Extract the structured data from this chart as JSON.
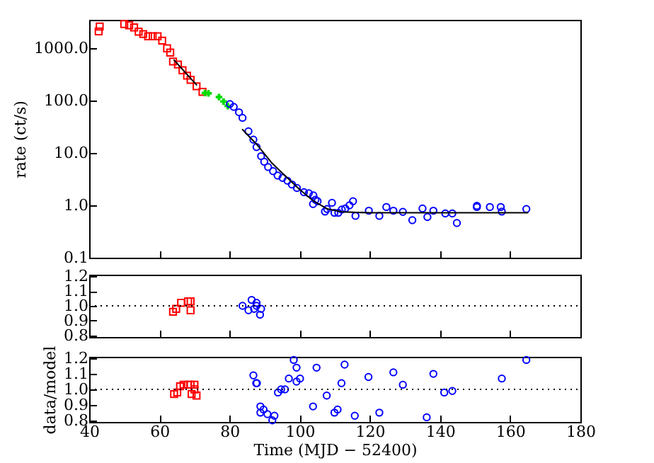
{
  "chart_data": [
    {
      "type": "scatter",
      "ylabel": "rate (ct/s)",
      "log": "y",
      "xlim": [
        40,
        180
      ],
      "xticks": [
        40,
        60,
        80,
        100,
        120,
        140,
        160,
        180
      ],
      "ylim": [
        0.1,
        3500
      ],
      "yticks": [
        {
          "value": 0.1,
          "label": "0.1"
        },
        {
          "value": 1,
          "label": "1.0"
        },
        {
          "value": 10,
          "label": "10.0"
        },
        {
          "value": 100,
          "label": "100.0"
        },
        {
          "value": 1000,
          "label": "1000.0"
        }
      ],
      "tick_labels": "y",
      "grid": false,
      "series": [
        {
          "marker": "square",
          "color": "#ff0000",
          "x": [
            42.7,
            43,
            50,
            51.4,
            52.8,
            54.1,
            55.4,
            56.8,
            58.1,
            59.5,
            60.8,
            62.2,
            63.1,
            63.9,
            65.3,
            66.6,
            67.9,
            68.9,
            70.6,
            72.3
          ],
          "values": [
            2100,
            2600,
            2900,
            2750,
            2500,
            2080,
            1870,
            1700,
            1700,
            1700,
            1400,
            1000,
            830,
            560,
            490,
            380,
            300,
            250,
            188,
            147
          ]
        },
        {
          "marker": "cross",
          "color": "#00dd00",
          "x": [
            73,
            74,
            77,
            78.3,
            79.5
          ],
          "values": [
            140,
            138,
            117,
            96,
            79
          ]
        },
        {
          "marker": "circle",
          "color": "#0000ff",
          "x": [
            80.1,
            81.2,
            82.7,
            83.7,
            85.4,
            86.8,
            87.7,
            89,
            89.9,
            91,
            92.4,
            93.7,
            95.1,
            96.5,
            97.8,
            99.2,
            101.2,
            102.6,
            103.9,
            104.5,
            105.1,
            103.8,
            107.2,
            107.8,
            109.2,
            109.9,
            111,
            112,
            113,
            114.2,
            115.2,
            115.9,
            119.7,
            122.7,
            124.7,
            126.7,
            129.4,
            132.1,
            135,
            136.4,
            138.1,
            141.5,
            143.5,
            144.8,
            150.5,
            150.5,
            154.2,
            157.3,
            157.6,
            164.6
          ],
          "values": [
            86,
            76,
            60,
            47,
            26,
            18,
            13,
            8.7,
            6.8,
            5.4,
            4.5,
            3.7,
            3.35,
            2.95,
            2.5,
            2.15,
            1.78,
            1.7,
            1.55,
            1.28,
            1.2,
            1.06,
            0.76,
            0.85,
            1.12,
            0.72,
            0.72,
            0.83,
            0.87,
            1.0,
            1.2,
            0.63,
            0.79,
            0.63,
            0.93,
            0.79,
            0.75,
            0.52,
            0.87,
            0.6,
            0.79,
            0.7,
            0.7,
            0.46,
            0.98,
            0.93,
            0.93,
            0.93,
            0.76,
            0.85
          ]
        },
        {
          "type": "line",
          "color": "#000000",
          "x": [
            64.2,
            70.6
          ],
          "values": [
            596,
            200
          ]
        },
        {
          "type": "line",
          "color": "#000000",
          "x": [
            83.7,
            88,
            92,
            96,
            100,
            104,
            108,
            112,
            120,
            165
          ],
          "values": [
            28,
            14,
            6.5,
            3.6,
            2.0,
            1.2,
            0.85,
            0.75,
            0.72,
            0.72
          ]
        }
      ]
    },
    {
      "type": "scatter",
      "xlim": [
        40,
        180
      ],
      "xticks": [
        40,
        60,
        80,
        100,
        120,
        140,
        160,
        180
      ],
      "ylim": [
        0.79,
        1.21
      ],
      "yticks": [
        {
          "value": 0.8,
          "label": "0.8"
        },
        {
          "value": 0.9,
          "label": "0.9"
        },
        {
          "value": 1,
          "label": "1.0"
        },
        {
          "value": 1.1,
          "label": "1.1"
        },
        {
          "value": 1.2,
          "label": "1.2"
        }
      ],
      "tick_labels": "y",
      "grid": false,
      "ref_lines": [
        {
          "axis": "y",
          "value": 1,
          "line_style": "dotted",
          "color": "#000000"
        }
      ],
      "series": [
        {
          "marker": "square",
          "color": "#ff0000",
          "x": [
            63.9,
            64.8,
            66.2,
            68.2,
            68.9,
            68.9
          ],
          "values": [
            0.96,
            0.98,
            1.02,
            1.03,
            1.03,
            0.97
          ]
        },
        {
          "marker": "circle",
          "color": "#0000ff",
          "x": [
            83.7,
            85.4,
            86.3,
            87,
            87.7,
            87.7,
            89,
            88.7
          ],
          "values": [
            1.0,
            0.97,
            1.04,
            0.98,
            1.02,
            1.0,
            0.98,
            0.94
          ]
        }
      ]
    },
    {
      "type": "scatter",
      "xlabel": "Time (MJD − 52400)",
      "ylabel": "data/model",
      "xlim": [
        40,
        180
      ],
      "xticks": [
        40,
        60,
        80,
        100,
        120,
        140,
        160,
        180
      ],
      "ylim": [
        0.79,
        1.21
      ],
      "yticks": [
        {
          "value": 0.8,
          "label": "0.8"
        },
        {
          "value": 0.9,
          "label": "0.9"
        },
        {
          "value": 1,
          "label": "1.0"
        },
        {
          "value": 1.1,
          "label": "1.1"
        },
        {
          "value": 1.2,
          "label": "1.2"
        }
      ],
      "grid": false,
      "ref_lines": [
        {
          "axis": "y",
          "value": 1,
          "line_style": "dotted",
          "color": "#000000"
        }
      ],
      "series": [
        {
          "marker": "square",
          "color": "#ff0000",
          "x": [
            64.2,
            65.1,
            65.9,
            66.9,
            68.2,
            68.9,
            69.2,
            70,
            70,
            70.6
          ],
          "values": [
            0.97,
            0.98,
            1.02,
            1.03,
            1.03,
            1.03,
            0.97,
            1.03,
            1.0,
            0.96
          ]
        },
        {
          "marker": "circle",
          "color": "#0000ff",
          "x": [
            86.8,
            87.6,
            87.8,
            88.8,
            88.8,
            89.7,
            90.8,
            92.2,
            92.8,
            93.8,
            94.7,
            95.8,
            96.9,
            98.3,
            99.1,
            99.1,
            100.1,
            103.8,
            104.8,
            107.7,
            109.9,
            110.8,
            111.9,
            112.8,
            115.7,
            119.6,
            122.7,
            126.7,
            129.4,
            136.2,
            138.1,
            141.2,
            143.5,
            157.6,
            164.6
          ],
          "values": [
            1.09,
            1.04,
            1.04,
            0.89,
            0.85,
            0.87,
            0.84,
            0.8,
            0.83,
            0.98,
            1.0,
            1.0,
            1.07,
            1.19,
            1.14,
            1.05,
            1.07,
            0.89,
            1.14,
            0.96,
            0.85,
            0.87,
            1.04,
            1.16,
            0.83,
            1.08,
            0.85,
            1.11,
            1.03,
            0.82,
            1.1,
            0.98,
            0.99,
            1.07,
            1.19
          ]
        }
      ]
    }
  ]
}
